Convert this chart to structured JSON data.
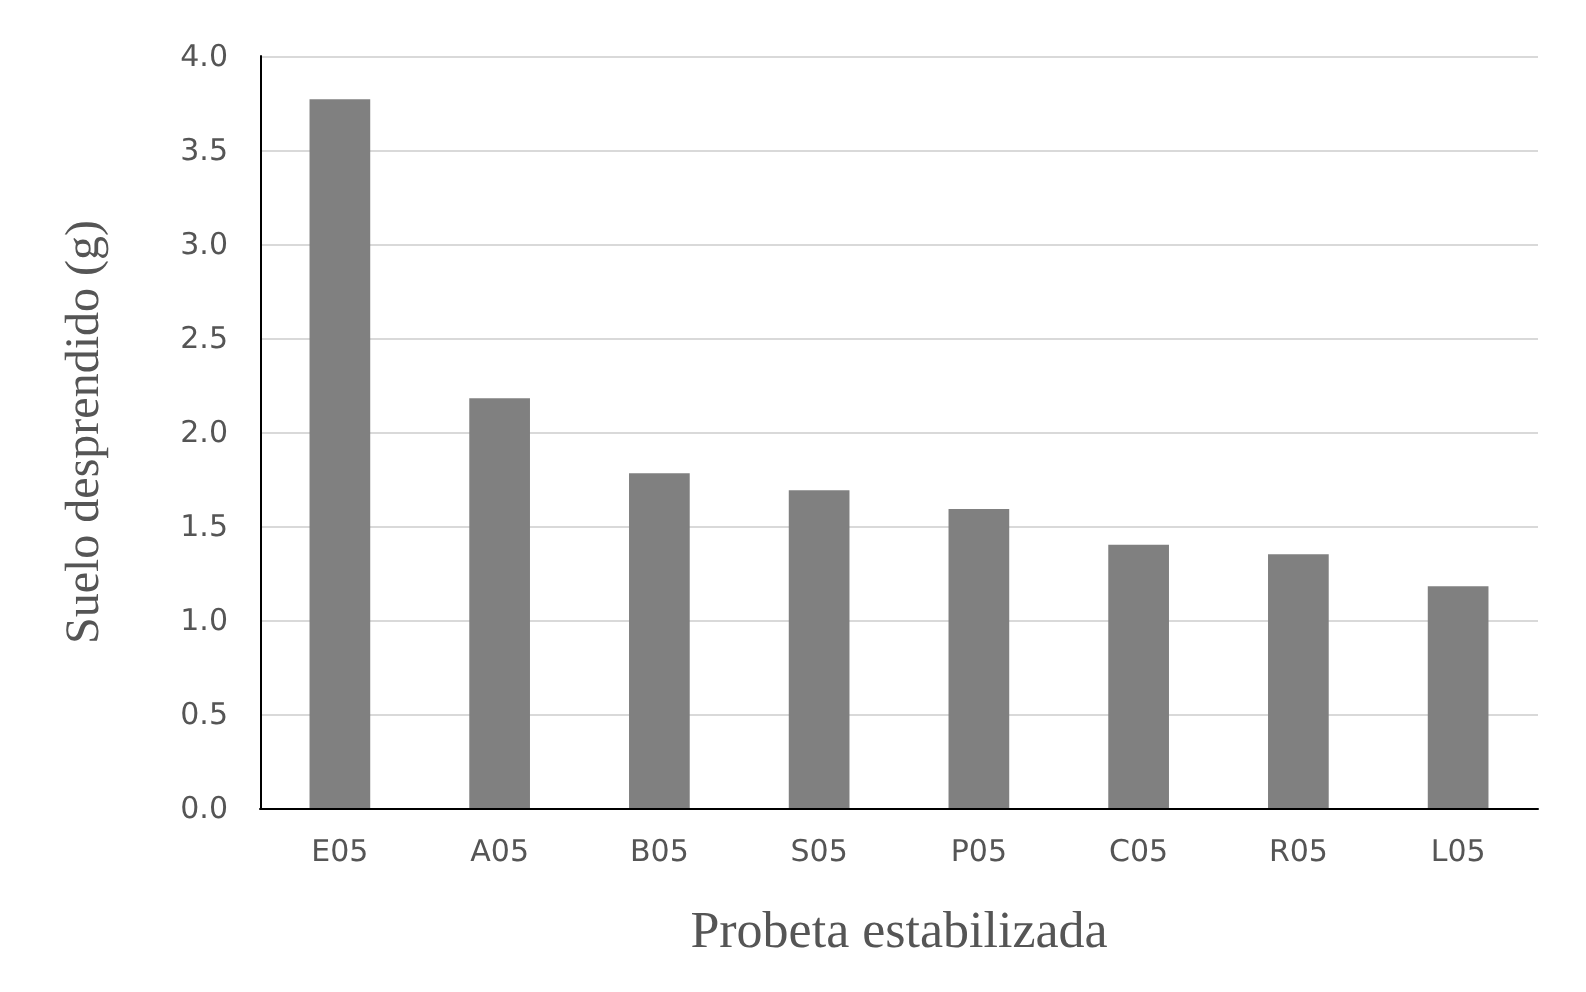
{
  "chart_data": {
    "type": "bar",
    "xlabel": "Probeta estabilizada",
    "ylabel": "Suelo desprendido (g)",
    "categories": [
      "E05",
      "A05",
      "B05",
      "S05",
      "P05",
      "C05",
      "R05",
      "L05"
    ],
    "values": [
      3.77,
      2.18,
      1.78,
      1.69,
      1.59,
      1.4,
      1.35,
      1.18
    ],
    "color": "#808080",
    "ylim": [
      0,
      4
    ],
    "yticks": [
      {
        "value": 0,
        "label": "0.0"
      },
      {
        "value": 0.5,
        "label": "0.5"
      },
      {
        "value": 1,
        "label": "1.0"
      },
      {
        "value": 1.5,
        "label": "1.5"
      },
      {
        "value": 2,
        "label": "2.0"
      },
      {
        "value": 2.5,
        "label": "2.5"
      },
      {
        "value": 3,
        "label": "3.0"
      },
      {
        "value": 3.5,
        "label": "3.5"
      },
      {
        "value": 4,
        "label": "4.0"
      }
    ],
    "grid": "y"
  }
}
